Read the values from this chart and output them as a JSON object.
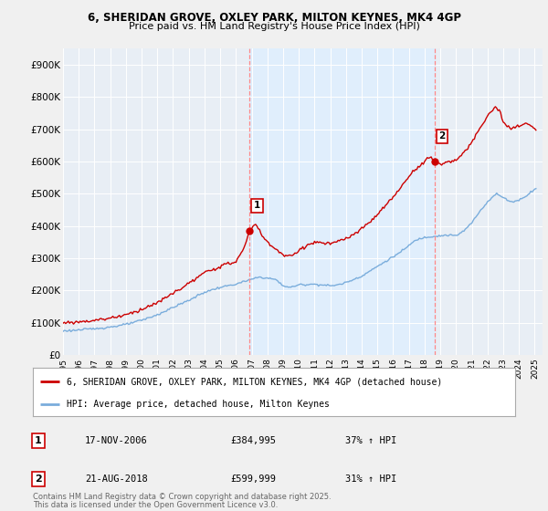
{
  "title_line1": "6, SHERIDAN GROVE, OXLEY PARK, MILTON KEYNES, MK4 4GP",
  "title_line2": "Price paid vs. HM Land Registry's House Price Index (HPI)",
  "ylabel_ticks": [
    "£0",
    "£100K",
    "£200K",
    "£300K",
    "£400K",
    "£500K",
    "£600K",
    "£700K",
    "£800K",
    "£900K"
  ],
  "ytick_values": [
    0,
    100000,
    200000,
    300000,
    400000,
    500000,
    600000,
    700000,
    800000,
    900000
  ],
  "ylim": [
    0,
    950000
  ],
  "xlim_start": 1995.0,
  "xlim_end": 2025.5,
  "x_tick_years": [
    1995,
    1996,
    1997,
    1998,
    1999,
    2000,
    2001,
    2002,
    2003,
    2004,
    2005,
    2006,
    2007,
    2008,
    2009,
    2010,
    2011,
    2012,
    2013,
    2014,
    2015,
    2016,
    2017,
    2018,
    2019,
    2020,
    2021,
    2022,
    2023,
    2024,
    2025
  ],
  "hpi_color": "#7aaddc",
  "price_color": "#cc0000",
  "vline_color": "#ff8888",
  "shade_color": "#ddeeff",
  "bg_color": "#f0f0f0",
  "chart_bg_color": "#e8eef5",
  "grid_color": "#ffffff",
  "sale1_x": 2006.88,
  "sale1_y": 384995,
  "sale1_label": "1",
  "sale1_date": "17-NOV-2006",
  "sale1_price": "£384,995",
  "sale1_hpi": "37% ↑ HPI",
  "sale2_x": 2018.64,
  "sale2_y": 599999,
  "sale2_label": "2",
  "sale2_date": "21-AUG-2018",
  "sale2_price": "£599,999",
  "sale2_hpi": "31% ↑ HPI",
  "legend_label1": "6, SHERIDAN GROVE, OXLEY PARK, MILTON KEYNES, MK4 4GP (detached house)",
  "legend_label2": "HPI: Average price, detached house, Milton Keynes",
  "footer1": "Contains HM Land Registry data © Crown copyright and database right 2025.",
  "footer2": "This data is licensed under the Open Government Licence v3.0.",
  "hpi_anchors_x": [
    1995.0,
    1996.0,
    1997.0,
    1998.0,
    1999.0,
    2000.0,
    2001.0,
    2002.0,
    2003.0,
    2004.0,
    2005.0,
    2006.0,
    2007.0,
    2007.5,
    2008.5,
    2009.0,
    2009.5,
    2010.0,
    2011.0,
    2012.0,
    2012.5,
    2013.0,
    2014.0,
    2015.0,
    2016.0,
    2016.5,
    2017.0,
    2017.5,
    2018.0,
    2018.5,
    2019.0,
    2019.5,
    2020.0,
    2020.5,
    2021.0,
    2021.5,
    2022.0,
    2022.3,
    2022.6,
    2023.0,
    2023.5,
    2024.0,
    2024.5,
    2025.0
  ],
  "hpi_anchors_y": [
    75000,
    78000,
    82000,
    87000,
    95000,
    108000,
    125000,
    148000,
    170000,
    195000,
    210000,
    220000,
    235000,
    242000,
    235000,
    215000,
    210000,
    218000,
    220000,
    215000,
    218000,
    225000,
    245000,
    275000,
    305000,
    320000,
    340000,
    358000,
    365000,
    368000,
    370000,
    372000,
    370000,
    385000,
    410000,
    445000,
    475000,
    490000,
    500000,
    488000,
    475000,
    480000,
    495000,
    515000
  ],
  "price_anchors_x": [
    1995.0,
    1996.0,
    1997.0,
    1998.0,
    1999.0,
    2000.0,
    2001.0,
    2002.0,
    2003.0,
    2004.0,
    2005.0,
    2006.0,
    2006.5,
    2006.88,
    2007.2,
    2007.8,
    2008.5,
    2009.0,
    2009.5,
    2010.0,
    2010.5,
    2011.0,
    2012.0,
    2013.0,
    2014.0,
    2015.0,
    2016.0,
    2016.5,
    2017.0,
    2017.5,
    2018.0,
    2018.3,
    2018.64,
    2019.0,
    2019.5,
    2020.0,
    2020.5,
    2021.0,
    2021.5,
    2022.0,
    2022.3,
    2022.5,
    2022.8,
    2023.0,
    2023.5,
    2024.0,
    2024.5,
    2025.0
  ],
  "price_anchors_y": [
    100000,
    103000,
    108000,
    115000,
    125000,
    142000,
    162000,
    192000,
    222000,
    255000,
    275000,
    290000,
    330000,
    384995,
    410000,
    360000,
    330000,
    310000,
    305000,
    325000,
    340000,
    350000,
    345000,
    360000,
    390000,
    435000,
    490000,
    520000,
    555000,
    580000,
    600000,
    615000,
    599999,
    590000,
    600000,
    605000,
    625000,
    660000,
    700000,
    740000,
    760000,
    770000,
    755000,
    720000,
    700000,
    710000,
    720000,
    700000
  ]
}
